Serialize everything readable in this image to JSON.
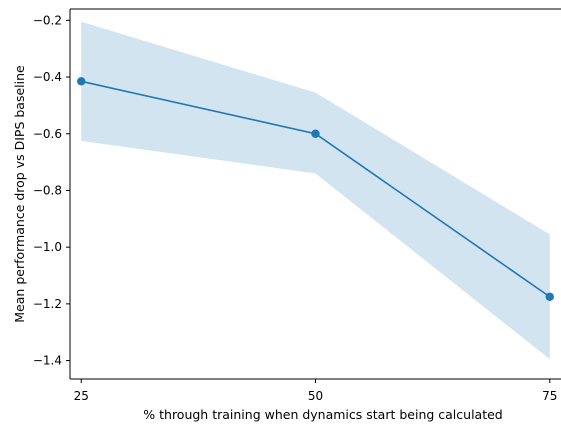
{
  "chart_data": {
    "type": "line",
    "xlabel": "% through training when dynamics start being calculated",
    "ylabel": "Mean performance drop vs DIPS baseline",
    "x": [
      25,
      50,
      75
    ],
    "series": [
      {
        "values": [
          -0.415,
          -0.6,
          -1.175
        ],
        "lower": [
          -0.625,
          -0.74,
          -1.395
        ],
        "upper": [
          -0.205,
          -0.455,
          -0.955
        ]
      }
    ],
    "xlim": [
      23.8,
      76.2
    ],
    "ylim": [
      -1.465,
      -0.16
    ],
    "xticks": [
      25,
      50,
      75
    ],
    "yticks": [
      -1.4,
      -1.2,
      -1.0,
      -0.8,
      -0.6,
      -0.4,
      -0.2
    ],
    "ytick_labels": [
      "−1.4",
      "−1.2",
      "−1.0",
      "−0.8",
      "−0.6",
      "−0.4",
      "−0.2"
    ],
    "grid": false,
    "colors": {
      "line": "#1f77b4",
      "band": "#1f77b4"
    }
  }
}
